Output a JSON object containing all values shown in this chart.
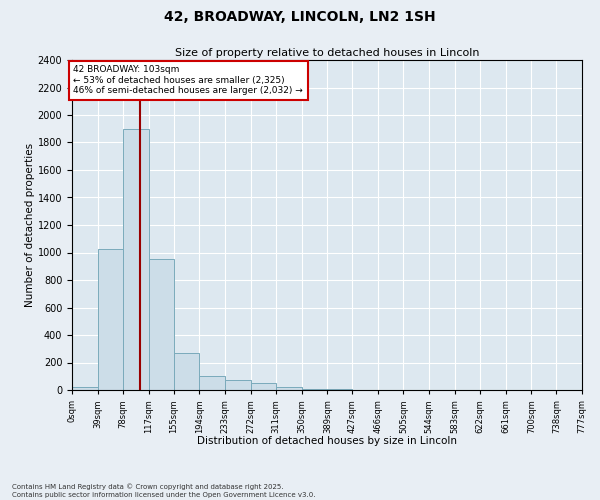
{
  "title_line1": "42, BROADWAY, LINCOLN, LN2 1SH",
  "title_line2": "Size of property relative to detached houses in Lincoln",
  "xlabel": "Distribution of detached houses by size in Lincoln",
  "ylabel": "Number of detached properties",
  "annotation_title": "42 BROADWAY: 103sqm",
  "annotation_line2": "← 53% of detached houses are smaller (2,325)",
  "annotation_line3": "46% of semi-detached houses are larger (2,032) →",
  "property_size_sqm": 103,
  "bin_edges": [
    0,
    39,
    78,
    117,
    155,
    194,
    233,
    272,
    311,
    350,
    389,
    427,
    466,
    505,
    544,
    583,
    622,
    661,
    700,
    738,
    777
  ],
  "bin_labels": [
    "0sqm",
    "39sqm",
    "78sqm",
    "117sqm",
    "155sqm",
    "194sqm",
    "233sqm",
    "272sqm",
    "311sqm",
    "350sqm",
    "389sqm",
    "427sqm",
    "466sqm",
    "505sqm",
    "544sqm",
    "583sqm",
    "622sqm",
    "661sqm",
    "700sqm",
    "738sqm",
    "777sqm"
  ],
  "bar_values": [
    25,
    1025,
    1900,
    950,
    270,
    105,
    75,
    50,
    25,
    10,
    5,
    2,
    1,
    0,
    0,
    0,
    0,
    0,
    0,
    0
  ],
  "bar_color": "#ccdde8",
  "bar_edge_color": "#7aaabb",
  "vline_color": "#990000",
  "ylim": [
    0,
    2400
  ],
  "yticks": [
    0,
    200,
    400,
    600,
    800,
    1000,
    1200,
    1400,
    1600,
    1800,
    2000,
    2200,
    2400
  ],
  "grid_color": "#ffffff",
  "bg_color": "#dde8f0",
  "fig_bg_color": "#e8eef4",
  "annotation_box_color": "#cc0000",
  "footer_line1": "Contains HM Land Registry data © Crown copyright and database right 2025.",
  "footer_line2": "Contains public sector information licensed under the Open Government Licence v3.0."
}
